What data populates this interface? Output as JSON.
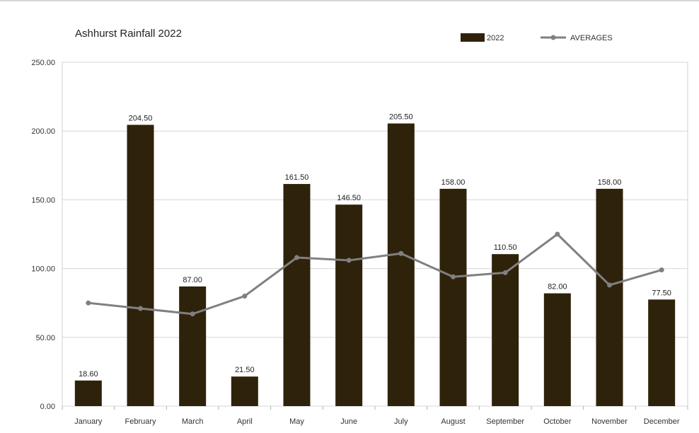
{
  "chart_data": {
    "type": "bar",
    "title": "Ashhurst Rainfall 2022",
    "categories": [
      "January",
      "February",
      "March",
      "April",
      "May",
      "June",
      "July",
      "August",
      "September",
      "October",
      "November",
      "December"
    ],
    "series": [
      {
        "name": "2022",
        "type": "bar",
        "color": "#2e220b",
        "values": [
          18.6,
          204.5,
          87.0,
          21.5,
          161.5,
          146.5,
          205.5,
          158.0,
          110.5,
          82.0,
          158.0,
          77.5
        ],
        "labels": [
          "18.60",
          "204.50",
          "87.00",
          "21.50",
          "161.50",
          "146.50",
          "205.50",
          "158.00",
          "110.50",
          "82.00",
          "158.00",
          "77.50"
        ]
      },
      {
        "name": "AVERAGES",
        "type": "line",
        "color": "#808080",
        "values": [
          75,
          71,
          67,
          80,
          108,
          106,
          111,
          94,
          97,
          125,
          88,
          99
        ]
      }
    ],
    "yticks": [
      "0.00",
      "50.00",
      "100.00",
      "150.00",
      "200.00",
      "250.00"
    ],
    "ylim": [
      0,
      250
    ],
    "grid": true,
    "legend_position": "top-right",
    "xlabel": "",
    "ylabel": ""
  }
}
